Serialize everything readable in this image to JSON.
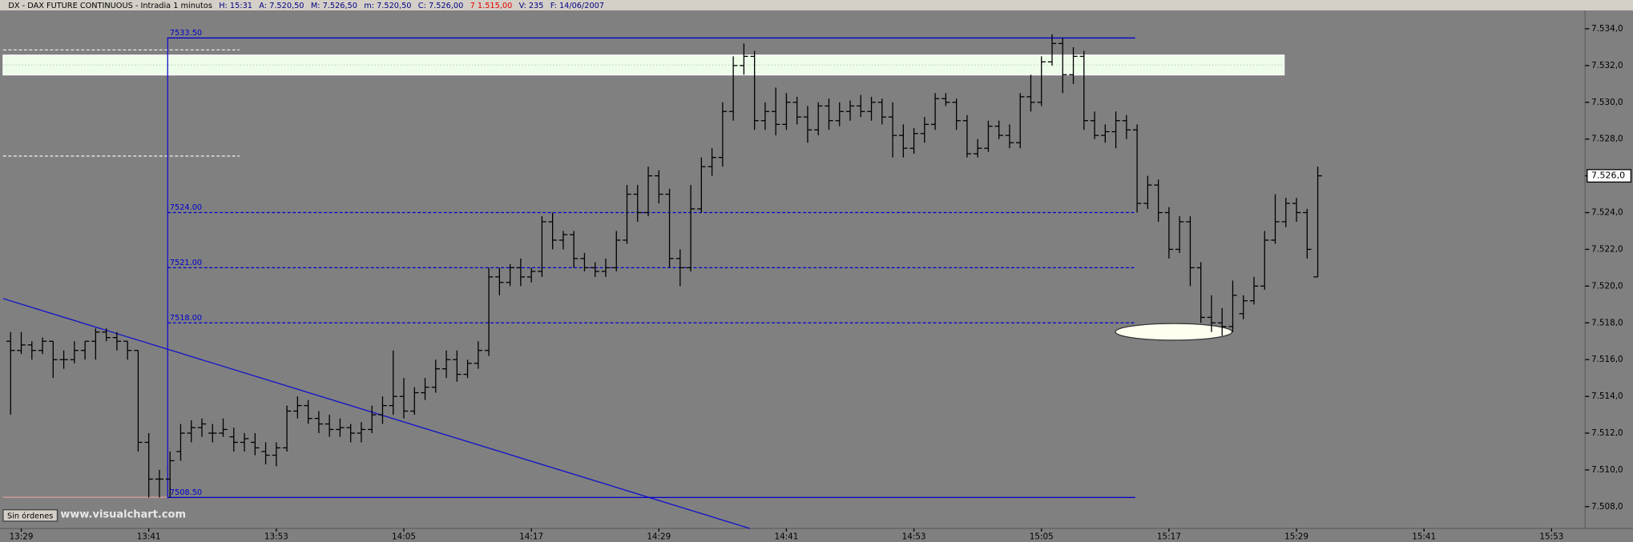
{
  "chart_data": {
    "type": "ohlc",
    "header": {
      "title": "DX - DAX FUTURE CONTINUOUS - Intradia 1 minutos",
      "fields": [
        "H: 15:31",
        "A: 7.520,50",
        "M: 7.526,50",
        "m: 7.520,50",
        "C: 7.526,00",
        "7  1.515,00",
        "V: 235",
        "F: 14/06/2007"
      ]
    },
    "bar_color": "#000000",
    "x": [
      "13:28",
      "13:29",
      "13:30",
      "13:31",
      "13:32",
      "13:33",
      "13:34",
      "13:35",
      "13:36",
      "13:37",
      "13:38",
      "13:39",
      "13:40",
      "13:41",
      "13:42",
      "13:43",
      "13:44",
      "13:45",
      "13:46",
      "13:47",
      "13:48",
      "13:49",
      "13:50",
      "13:51",
      "13:52",
      "13:53",
      "13:54",
      "13:55",
      "13:56",
      "13:57",
      "13:58",
      "13:59",
      "14:00",
      "14:01",
      "14:02",
      "14:03",
      "14:04",
      "14:05",
      "14:06",
      "14:07",
      "14:08",
      "14:09",
      "14:10",
      "14:11",
      "14:12",
      "14:13",
      "14:14",
      "14:15",
      "14:16",
      "14:17",
      "14:18",
      "14:19",
      "14:20",
      "14:21",
      "14:22",
      "14:23",
      "14:24",
      "14:25",
      "14:26",
      "14:27",
      "14:28",
      "14:29",
      "14:30",
      "14:31",
      "14:32",
      "14:33",
      "14:34",
      "14:35",
      "14:36",
      "14:37",
      "14:38",
      "14:39",
      "14:40",
      "14:41",
      "14:42",
      "14:43",
      "14:44",
      "14:45",
      "14:46",
      "14:47",
      "14:48",
      "14:49",
      "14:50",
      "14:51",
      "14:52",
      "14:53",
      "14:54",
      "14:55",
      "14:56",
      "14:57",
      "14:58",
      "14:59",
      "15:00",
      "15:01",
      "15:02",
      "15:03",
      "15:04",
      "15:05",
      "15:06",
      "15:07",
      "15:08",
      "15:09",
      "15:10",
      "15:11",
      "15:12",
      "15:13",
      "15:14",
      "15:15",
      "15:16",
      "15:17",
      "15:18",
      "15:19",
      "15:20",
      "15:21",
      "15:22",
      "15:23",
      "15:24",
      "15:25",
      "15:26",
      "15:27",
      "15:28",
      "15:29",
      "15:30",
      "15:31"
    ],
    "open": [
      7517,
      7516.5,
      7516.8,
      7516.5,
      7517,
      7516,
      7516,
      7516.5,
      7517,
      7517.5,
      7517.2,
      7517,
      7516.5,
      7511.5,
      7509.5,
      7509.5,
      7511,
      7512,
      7512.3,
      7512,
      7512,
      7511.8,
      7511.5,
      7511.5,
      7511,
      7510.8,
      7511.2,
      7513.2,
      7513.5,
      7512.8,
      7512.5,
      7512.2,
      7512.3,
      7512,
      7512.2,
      7513,
      7513.5,
      7514,
      7513.2,
      7514.2,
      7514.5,
      7515.5,
      7516,
      7515.2,
      7515.8,
      7516.5,
      7520.5,
      7520.2,
      7521,
      7520.5,
      7520.8,
      7523.5,
      7522.5,
      7522.8,
      7521.5,
      7521,
      7520.8,
      7521,
      7522.5,
      7525,
      7524,
      7526,
      7525,
      7521.5,
      7521,
      7524.2,
      7526.5,
      7527,
      7529.5,
      7532,
      7532.5,
      7529,
      7529.5,
      7528.8,
      7530,
      7529.2,
      7528.5,
      7529.8,
      7529,
      7529.5,
      7529.8,
      7529.5,
      7530,
      7529.2,
      7528.2,
      7527.5,
      7528.3,
      7528.8,
      7530.2,
      7530,
      7529,
      7527.2,
      7527.5,
      7528.7,
      7528.2,
      7527.8,
      7530.3,
      7530,
      7532.2,
      7533.2,
      7531.5,
      7532.5,
      7529,
      7528.2,
      7528.4,
      7529,
      7528.5,
      7524.5,
      7525.5,
      7524,
      7522,
      7523.5,
      7521,
      7518.3,
      7518,
      7517.8,
      7518.5,
      7519.2,
      7520,
      7522.5,
      7523.5,
      7524.5,
      7524,
      7520.5
    ],
    "high": [
      7517.5,
      7517.5,
      7517,
      7517.2,
      7517,
      7516.5,
      7517,
      7517,
      7517.7,
      7517.7,
      7517.5,
      7517,
      7516.5,
      7512,
      7510,
      7511,
      7512.5,
      7512.7,
      7512.8,
      7512.5,
      7512.8,
      7512.3,
      7512,
      7512,
      7511.5,
      7511.5,
      7513.5,
      7514,
      7513.8,
      7513.2,
      7513,
      7512.8,
      7512.5,
      7512.6,
      7513.5,
      7514,
      7516.5,
      7515,
      7514.5,
      7515,
      7516,
      7516.5,
      7516.5,
      7516,
      7517,
      7521,
      7521,
      7521.2,
      7521.5,
      7521,
      7523.8,
      7524,
      7523,
      7523,
      7521.8,
      7521.3,
      7521.5,
      7523,
      7525.5,
      7525.5,
      7526.5,
      7526.3,
      7525.3,
      7522,
      7525.5,
      7527,
      7527.5,
      7530,
      7532.5,
      7533.2,
      7532.8,
      7530,
      7530.8,
      7530.5,
      7530.3,
      7529.8,
      7530,
      7530.2,
      7530,
      7530.1,
      7530.4,
      7530.3,
      7530.2,
      7530,
      7528.8,
      7528.6,
      7529.2,
      7530.5,
      7530.5,
      7530.2,
      7529.3,
      7528,
      7529,
      7529,
      7528.8,
      7530.5,
      7531.5,
      7532.5,
      7533.7,
      7533.5,
      7533,
      7532.8,
      7529.5,
      7528.8,
      7529.5,
      7529.3,
      7528.8,
      7526,
      7525.8,
      7524.3,
      7523.8,
      7523.8,
      7521.3,
      7519.5,
      7518.8,
      7520.3,
      7519.5,
      7520.5,
      7523,
      7525,
      7524.8,
      7524.8,
      7524.2,
      7526.5
    ],
    "low": [
      7513,
      7516.3,
      7516,
      7516.3,
      7515,
      7515.5,
      7515.8,
      7516,
      7516,
      7517,
      7516.5,
      7516,
      7511,
      7508.5,
      7508.5,
      7508.5,
      7510.5,
      7511.5,
      7511.8,
      7511.5,
      7511.8,
      7511,
      7511,
      7510.8,
      7510.3,
      7510.2,
      7511,
      7512.8,
      7512.5,
      7512,
      7511.8,
      7511.8,
      7511.5,
      7511.5,
      7512,
      7512.5,
      7513,
      7512.8,
      7513,
      7513.8,
      7514.2,
      7515,
      7514.8,
      7515,
      7515.5,
      7516.2,
      7519.5,
      7520,
      7520,
      7520.2,
      7520.5,
      7522,
      7522,
      7521,
      7520.8,
      7520.5,
      7520.5,
      7520.8,
      7522.3,
      7523.5,
      7523.8,
      7524.5,
      7521,
      7520,
      7520.8,
      7524,
      7526,
      7526.5,
      7529,
      7531.5,
      7528.5,
      7528.5,
      7528.2,
      7528.5,
      7528.8,
      7527.8,
      7528.2,
      7528.5,
      7528.7,
      7529,
      7529.2,
      7529,
      7528.8,
      7527,
      7527,
      7527.2,
      7527.8,
      7528.5,
      7529.8,
      7528.5,
      7527,
      7527,
      7527.3,
      7528,
      7527.5,
      7527.5,
      7529.5,
      7529.8,
      7532,
      7530.5,
      7531,
      7528.5,
      7528,
      7527.8,
      7527.5,
      7528,
      7524,
      7524.2,
      7523.5,
      7521.5,
      7521.8,
      7520,
      7518,
      7517.5,
      7517.3,
      7517.5,
      7518.2,
      7519,
      7519.8,
      7522.3,
      7523.2,
      7523.5,
      7521.5,
      7520.5
    ],
    "close": [
      7516.5,
      7516.8,
      7516.5,
      7517,
      7516,
      7516,
      7516.5,
      7517,
      7517.5,
      7517.2,
      7517,
      7516.5,
      7511.5,
      7509.5,
      7509.5,
      7510.5,
      7512,
      7512.3,
      7512.5,
      7512,
      7512.2,
      7511.5,
      7511.7,
      7511.2,
      7510.8,
      7511.2,
      7513.2,
      7513.5,
      7512.8,
      7512.5,
      7512.2,
      7512.3,
      7512,
      7512.2,
      7513,
      7513.5,
      7514,
      7513.2,
      7514.2,
      7514.5,
      7515.5,
      7516,
      7515.2,
      7515.8,
      7516.5,
      7520.5,
      7520.2,
      7521,
      7520.5,
      7520.8,
      7523.5,
      7522.5,
      7522.8,
      7521.5,
      7521,
      7520.8,
      7521,
      7522.5,
      7525,
      7524,
      7526,
      7525,
      7521.5,
      7521,
      7524.2,
      7526.5,
      7527,
      7529.5,
      7532,
      7532.5,
      7529,
      7529.5,
      7528.8,
      7530,
      7529.2,
      7528.5,
      7529.8,
      7529,
      7529.5,
      7529.8,
      7529.5,
      7530,
      7529.2,
      7528.2,
      7527.5,
      7528.3,
      7528.8,
      7530.2,
      7530,
      7529,
      7527.2,
      7527.5,
      7528.7,
      7528.2,
      7527.8,
      7530.3,
      7530,
      7532.2,
      7533.2,
      7531.5,
      7532.5,
      7529,
      7528.2,
      7528.4,
      7529,
      7528.5,
      7524.5,
      7525.5,
      7524,
      7522,
      7523.5,
      7521,
      7518.3,
      7518,
      7517.8,
      7519.5,
      7519.2,
      7520,
      7522.5,
      7523.5,
      7524.5,
      7524,
      7522,
      7526
    ],
    "xlim": [
      "13:27",
      "15:54"
    ],
    "xticks": [
      "13:29",
      "13:41",
      "13:53",
      "14:05",
      "14:17",
      "14:29",
      "14:41",
      "14:53",
      "15:05",
      "15:17",
      "15:29",
      "15:41",
      "15:53"
    ],
    "ylim": [
      7506.7,
      7535
    ],
    "yticks": [
      {
        "value": 7508,
        "label": "7.508,0"
      },
      {
        "value": 7510,
        "label": "7.510,0"
      },
      {
        "value": 7512,
        "label": "7.512,0"
      },
      {
        "value": 7514,
        "label": "7.514,0"
      },
      {
        "value": 7516,
        "label": "7.516,0"
      },
      {
        "value": 7518,
        "label": "7.518,0"
      },
      {
        "value": 7520,
        "label": "7.520,0"
      },
      {
        "value": 7522,
        "label": "7.522,0"
      },
      {
        "value": 7524,
        "label": "7.524,0"
      },
      {
        "value": 7526,
        "label": "7.526,0"
      },
      {
        "value": 7528,
        "label": "7.528,0"
      },
      {
        "value": 7530,
        "label": "7.530,0"
      },
      {
        "value": 7532,
        "label": "7.532,0"
      },
      {
        "value": 7534,
        "label": "7.534,0"
      }
    ],
    "last_label": "7.526,0",
    "level_color": "#0000cc",
    "levels": [
      {
        "value": 7533.5,
        "label": "7533.50",
        "style": "solid"
      },
      {
        "value": 7524,
        "label": "7524.00",
        "style": "dashed"
      },
      {
        "value": 7521,
        "label": "7521.00",
        "style": "dashed"
      },
      {
        "value": 7518,
        "label": "7518.00",
        "style": "dashed"
      },
      {
        "value": 7508.5,
        "label": "7508.50",
        "style": "solid"
      }
    ],
    "footer": {
      "button": "Sin órdenes",
      "watermark": "www.visualchart.com"
    }
  }
}
